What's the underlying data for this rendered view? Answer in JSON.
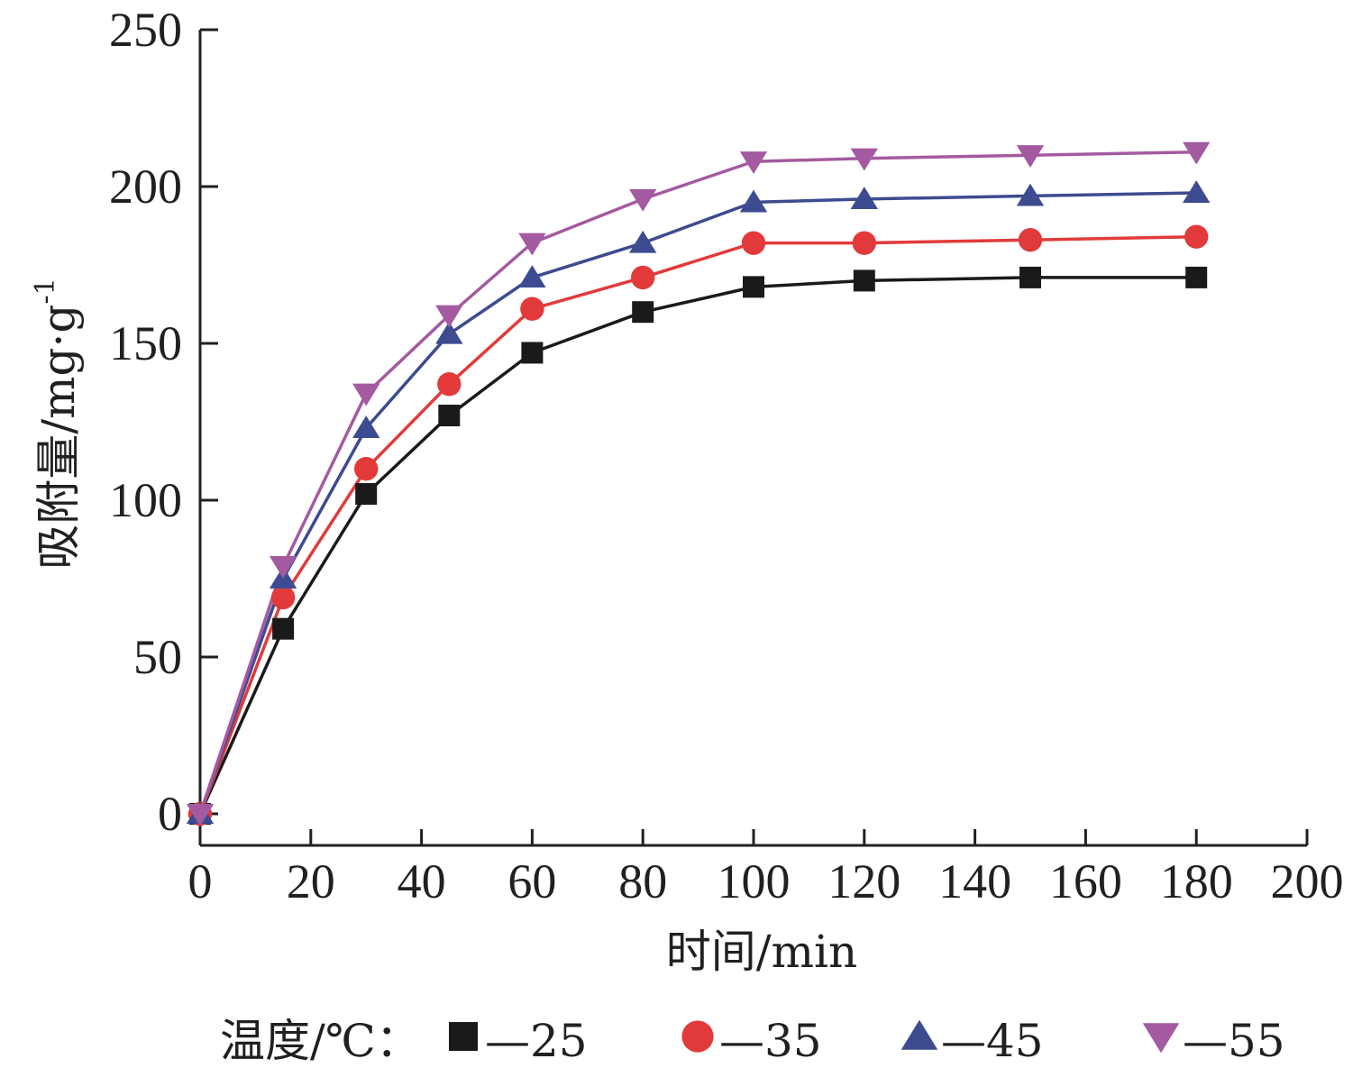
{
  "chart_data": {
    "type": "line",
    "xlabel": "时间/min",
    "ylabel": "吸附量/mg·g",
    "ylabel_superscript": "-1",
    "xlim": [
      0,
      200
    ],
    "ylim": [
      0,
      250
    ],
    "x_ticks": [
      "0",
      "20",
      "40",
      "60",
      "80",
      "100",
      "120",
      "140",
      "160",
      "180",
      "200"
    ],
    "y_ticks": [
      "0",
      "50",
      "100",
      "150",
      "200",
      "250"
    ],
    "grid": false,
    "legend_title": "温度/℃：",
    "legend_position": "bottom",
    "x": [
      0,
      15,
      30,
      45,
      60,
      80,
      100,
      120,
      150,
      180
    ],
    "series": [
      {
        "name": "25",
        "legend_label": "—25",
        "marker": "square",
        "color": "#1a1a1a",
        "values": [
          0,
          59,
          102,
          127,
          147,
          160,
          168,
          170,
          171,
          171
        ]
      },
      {
        "name": "35",
        "legend_label": "—35",
        "marker": "circle",
        "color": "#e23a3a",
        "values": [
          0,
          69,
          110,
          137,
          161,
          171,
          182,
          182,
          183,
          184
        ]
      },
      {
        "name": "45",
        "legend_label": "—45",
        "marker": "triangle-up",
        "color": "#3d4b90",
        "values": [
          0,
          75,
          123,
          153,
          171,
          182,
          195,
          196,
          197,
          198
        ]
      },
      {
        "name": "55",
        "legend_label": "—55",
        "marker": "triangle-down",
        "color": "#a45aa0",
        "values": [
          0,
          79,
          134,
          159,
          182,
          196,
          208,
          209,
          210,
          211
        ]
      }
    ]
  }
}
